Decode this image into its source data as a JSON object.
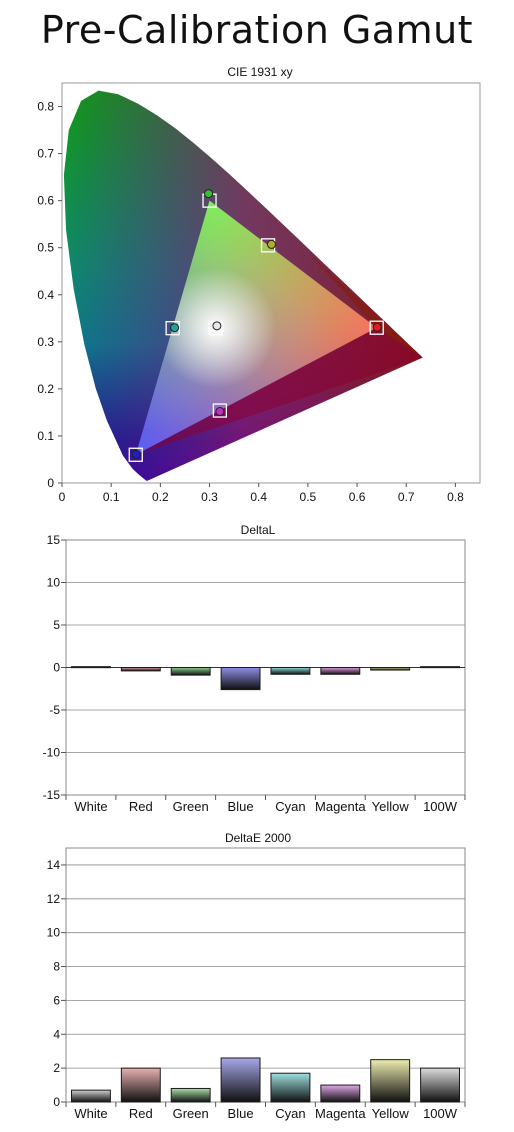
{
  "page": {
    "title": "Pre-Calibration Gamut"
  },
  "chart_data": [
    {
      "type": "scatter",
      "title": "CIE 1931 xy",
      "xlabel": "",
      "ylabel": "",
      "xlim": [
        0,
        0.85
      ],
      "ylim": [
        0,
        0.85
      ],
      "x_ticks": [
        "0",
        "0.1",
        "0.2",
        "0.3",
        "0.4",
        "0.5",
        "0.6",
        "0.7",
        "0.8"
      ],
      "y_ticks": [
        "0",
        "0.1",
        "0.2",
        "0.3",
        "0.4",
        "0.5",
        "0.6",
        "0.7",
        "0.8"
      ],
      "grid": false,
      "series": [
        {
          "role": "target",
          "marker": "square",
          "points": [
            {
              "label": "Red",
              "x": 0.64,
              "y": 0.33
            },
            {
              "label": "Green",
              "x": 0.3,
              "y": 0.6
            },
            {
              "label": "Blue",
              "x": 0.15,
              "y": 0.06
            },
            {
              "label": "Cyan",
              "x": 0.225,
              "y": 0.329
            },
            {
              "label": "Magenta",
              "x": 0.321,
              "y": 0.154
            },
            {
              "label": "Yellow",
              "x": 0.419,
              "y": 0.505
            },
            {
              "label": "White",
              "x": 0.3127,
              "y": 0.329
            }
          ]
        },
        {
          "role": "measured",
          "marker": "circle",
          "points": [
            {
              "label": "Red",
              "x": 0.641,
              "y": 0.331
            },
            {
              "label": "Green",
              "x": 0.298,
              "y": 0.615
            },
            {
              "label": "Blue",
              "x": 0.151,
              "y": 0.061
            },
            {
              "label": "Cyan",
              "x": 0.229,
              "y": 0.33
            },
            {
              "label": "Magenta",
              "x": 0.321,
              "y": 0.152
            },
            {
              "label": "Yellow",
              "x": 0.426,
              "y": 0.507
            },
            {
              "label": "White",
              "x": 0.315,
              "y": 0.334
            }
          ]
        }
      ]
    },
    {
      "type": "bar",
      "title": "DeltaL",
      "xlabel": "",
      "ylabel": "",
      "ylim": [
        -15,
        15
      ],
      "y_ticks": [
        "15",
        "10",
        "5",
        "0",
        "-5",
        "-10",
        "-15"
      ],
      "grid": true,
      "categories": [
        "White",
        "Red",
        "Green",
        "Blue",
        "Cyan",
        "Magenta",
        "Yellow",
        "100W"
      ],
      "values": [
        0.1,
        -0.4,
        -0.9,
        -2.6,
        -0.8,
        -0.8,
        -0.3,
        0.1
      ],
      "colors": [
        "#c8c8c8",
        "#e8a0a0",
        "#8ed08e",
        "#8e8ee8",
        "#8ed8d8",
        "#e09ae0",
        "#e0e090",
        "#c8c8c8"
      ]
    },
    {
      "type": "bar",
      "title": "DeltaE 2000",
      "xlabel": "",
      "ylabel": "",
      "ylim": [
        0,
        15
      ],
      "y_ticks": [
        "14",
        "12",
        "10",
        "8",
        "6",
        "4",
        "2",
        "0"
      ],
      "grid": true,
      "categories": [
        "White",
        "Red",
        "Green",
        "Blue",
        "Cyan",
        "Magenta",
        "Yellow",
        "100W"
      ],
      "values": [
        0.7,
        2.0,
        0.8,
        2.6,
        1.7,
        1.0,
        2.5,
        2.0
      ],
      "colors": [
        "#d0d0d0",
        "#e8b0b0",
        "#a8e0a8",
        "#a8a8ec",
        "#a0e0e0",
        "#e0a8e8",
        "#ececb0",
        "#dcdcdc"
      ]
    }
  ]
}
